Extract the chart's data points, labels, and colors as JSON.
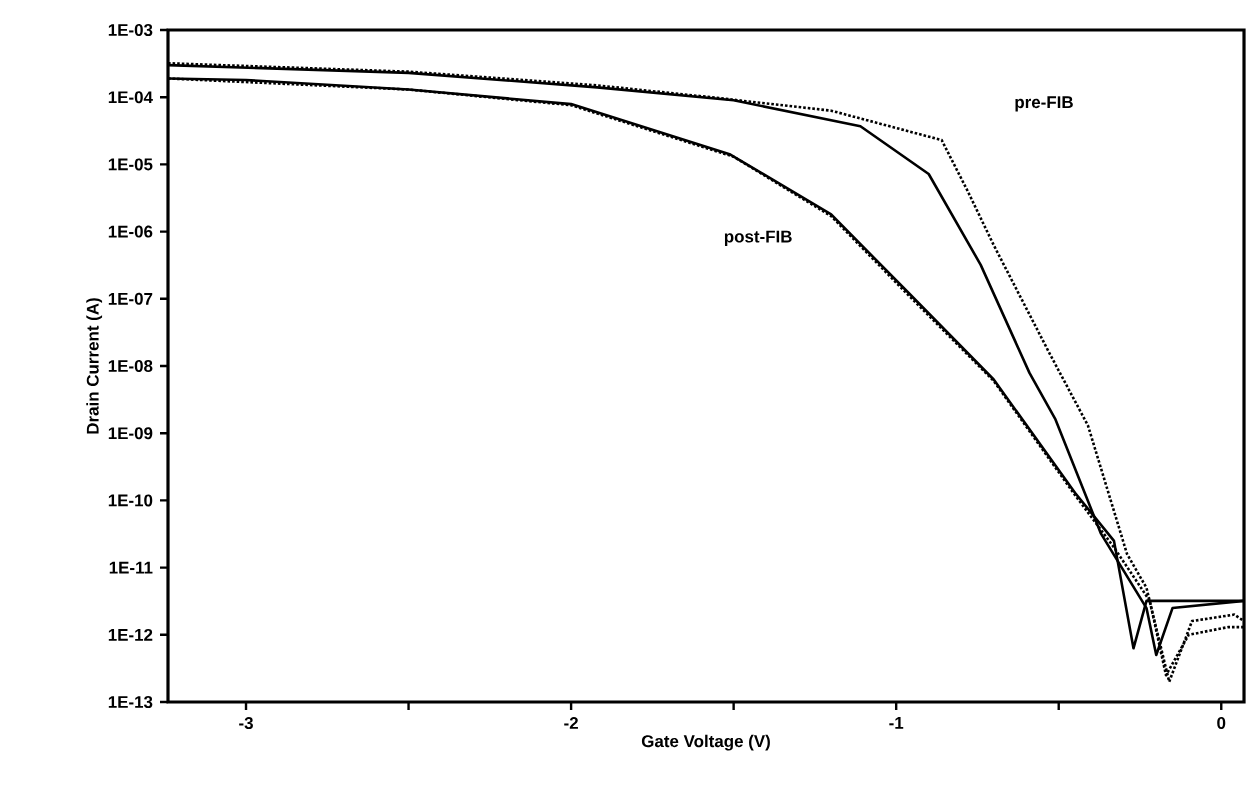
{
  "chart_data": {
    "type": "line",
    "xlabel": "Gate Voltage (V)",
    "ylabel": "Drain Current (A)",
    "log": "y",
    "marker": "none",
    "xlim": [
      -3.24,
      0.07
    ],
    "ylim": [
      1e-13,
      0.001
    ],
    "xticks": [
      -3,
      {
        "value": -2.5,
        "label": null
      },
      -2,
      {
        "value": -1.5,
        "label": null
      },
      -1,
      {
        "value": -0.5,
        "label": null
      },
      0
    ],
    "yticks": [
      {
        "value": 0.001,
        "label": "1E-03"
      },
      {
        "value": 0.0001,
        "label": "1E-04"
      },
      {
        "value": 1e-05,
        "label": "1E-05"
      },
      {
        "value": 1e-06,
        "label": "1E-06"
      },
      {
        "value": 1e-07,
        "label": "1E-07"
      },
      {
        "value": 1e-08,
        "label": "1E-08"
      },
      {
        "value": 1e-09,
        "label": "1E-09"
      },
      {
        "value": 1e-10,
        "label": "1E-10"
      },
      {
        "value": 1e-11,
        "label": "1E-11"
      },
      {
        "value": 1e-12,
        "label": "1E-12"
      },
      {
        "value": 1e-13,
        "label": "1E-13"
      }
    ],
    "series": [
      {
        "color": "#000000",
        "line_style": "dotted",
        "x": [
          -3.24,
          -2.5,
          -1.92,
          -1.57,
          -1.2,
          -0.86,
          -0.78,
          -0.7,
          -0.53,
          -0.41,
          -0.29,
          -0.23,
          -0.16,
          -0.09,
          0.04,
          0.07
        ],
        "values": [
          0.00032,
          0.00024,
          0.00015,
          0.0001,
          6.3e-05,
          2.3e-05,
          4e-06,
          6.3e-07,
          1.6e-08,
          1.3e-09,
          1.6e-11,
          5e-12,
          2e-13,
          1.6e-12,
          2e-12,
          1.6e-12
        ]
      },
      {
        "color": "#000000",
        "line_style": "solid",
        "x": [
          -3.24,
          -2.5,
          -1.92,
          -1.5,
          -1.11,
          -0.9,
          -0.74,
          -0.59,
          -0.51,
          -0.37,
          -0.23,
          -0.2,
          -0.15,
          0.07
        ],
        "values": [
          0.0003,
          0.00023,
          0.00014,
          9e-05,
          3.7e-05,
          7.2e-06,
          3.2e-07,
          7.9e-09,
          1.6e-09,
          3.2e-11,
          2.5e-12,
          5e-13,
          2.5e-12,
          3.2e-12
        ]
      },
      {
        "color": "#000000",
        "line_style": "solid",
        "x": [
          -3.24,
          -3,
          -2.5,
          -2,
          -1.51,
          -1.2,
          -0.96,
          -0.7,
          -0.45,
          -0.33,
          -0.27,
          -0.23,
          0.07
        ],
        "values": [
          0.00019,
          0.00018,
          0.00013,
          7.9e-05,
          1.4e-05,
          1.8e-06,
          1.2e-07,
          6.3e-09,
          1.3e-10,
          2.5e-11,
          6.3e-13,
          3.2e-12,
          3.2e-12
        ]
      },
      {
        "color": "#000000",
        "line_style": "dotted",
        "x": [
          -3.24,
          -2.5,
          -2,
          -1.5,
          -1.2,
          -0.96,
          -0.7,
          -0.45,
          -0.33,
          -0.22,
          -0.17,
          -0.1,
          0.02,
          0.07
        ],
        "values": [
          0.00019,
          0.00013,
          7.6e-05,
          1.3e-05,
          1.7e-06,
          1.1e-07,
          6e-09,
          1.2e-10,
          2e-11,
          3.2e-12,
          2.5e-13,
          1e-12,
          1.3e-12,
          1.3e-12
        ]
      }
    ],
    "annotations": [
      "pre-FIB",
      "post-FIB"
    ]
  }
}
